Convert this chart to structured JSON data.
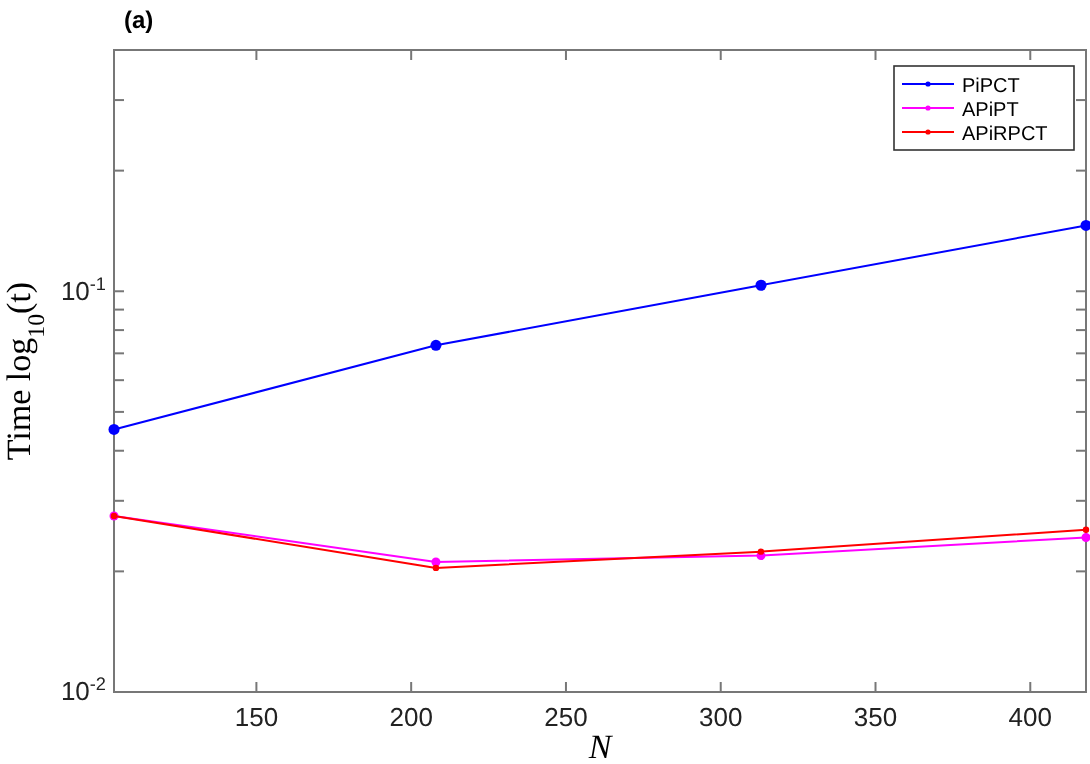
{
  "chart_data": {
    "type": "line",
    "title": "(a)",
    "xlabel": "N",
    "ylabel": "Time log$_{10}$(t)",
    "log": "y",
    "x": [
      104,
      208,
      313,
      418
    ],
    "xlim": [
      104,
      418
    ],
    "xticks": [
      150,
      200,
      250,
      300,
      350,
      400
    ],
    "ylim": [
      0.01,
      0.4
    ],
    "yticks": [
      {
        "value": 0.01,
        "label": "10$^{-2}$"
      },
      {
        "value": 0.02,
        "label": null
      },
      {
        "value": 0.03,
        "label": null
      },
      {
        "value": 0.04,
        "label": null
      },
      {
        "value": 0.05,
        "label": null
      },
      {
        "value": 0.06,
        "label": null
      },
      {
        "value": 0.07,
        "label": null
      },
      {
        "value": 0.08,
        "label": null
      },
      {
        "value": 0.09,
        "label": null
      },
      {
        "value": 0.1,
        "label": "10$^{-1}$"
      },
      {
        "value": 0.2,
        "label": null
      },
      {
        "value": 0.3,
        "label": null
      },
      {
        "value": 0.4,
        "label": null
      }
    ],
    "series": [
      {
        "name": "PiPCT",
        "color": "#0000ff",
        "values": [
          0.0452,
          0.0733,
          0.1035,
          0.146
        ]
      },
      {
        "name": "APiPT",
        "color": "#ff00ff",
        "values": [
          0.0275,
          0.0211,
          0.0219,
          0.0243
        ]
      },
      {
        "name": "APiRPCT",
        "color": "#ff0000",
        "values": [
          0.0275,
          0.0204,
          0.0224,
          0.0254
        ]
      }
    ],
    "legend": "top right",
    "marker": "circle",
    "line_style": "solid",
    "grid": false
  }
}
